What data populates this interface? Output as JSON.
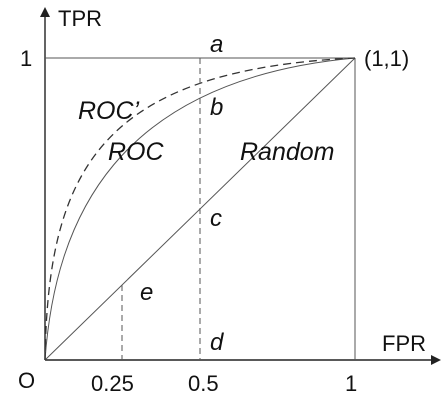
{
  "axes": {
    "y_label": "TPR",
    "x_label": "FPR",
    "origin_label": "O",
    "y_tick_1": "1",
    "x_ticks": [
      "0.25",
      "0.5",
      "1"
    ],
    "corner_label": "(1,1)"
  },
  "points": {
    "a": "a",
    "b": "b",
    "c": "c",
    "d": "d",
    "e": "e"
  },
  "curves": {
    "roc_prime": "ROC’",
    "roc": "ROC",
    "random": "Random"
  },
  "colors": {
    "line": "#333333",
    "axis": "#222222",
    "text": "#111111"
  }
}
